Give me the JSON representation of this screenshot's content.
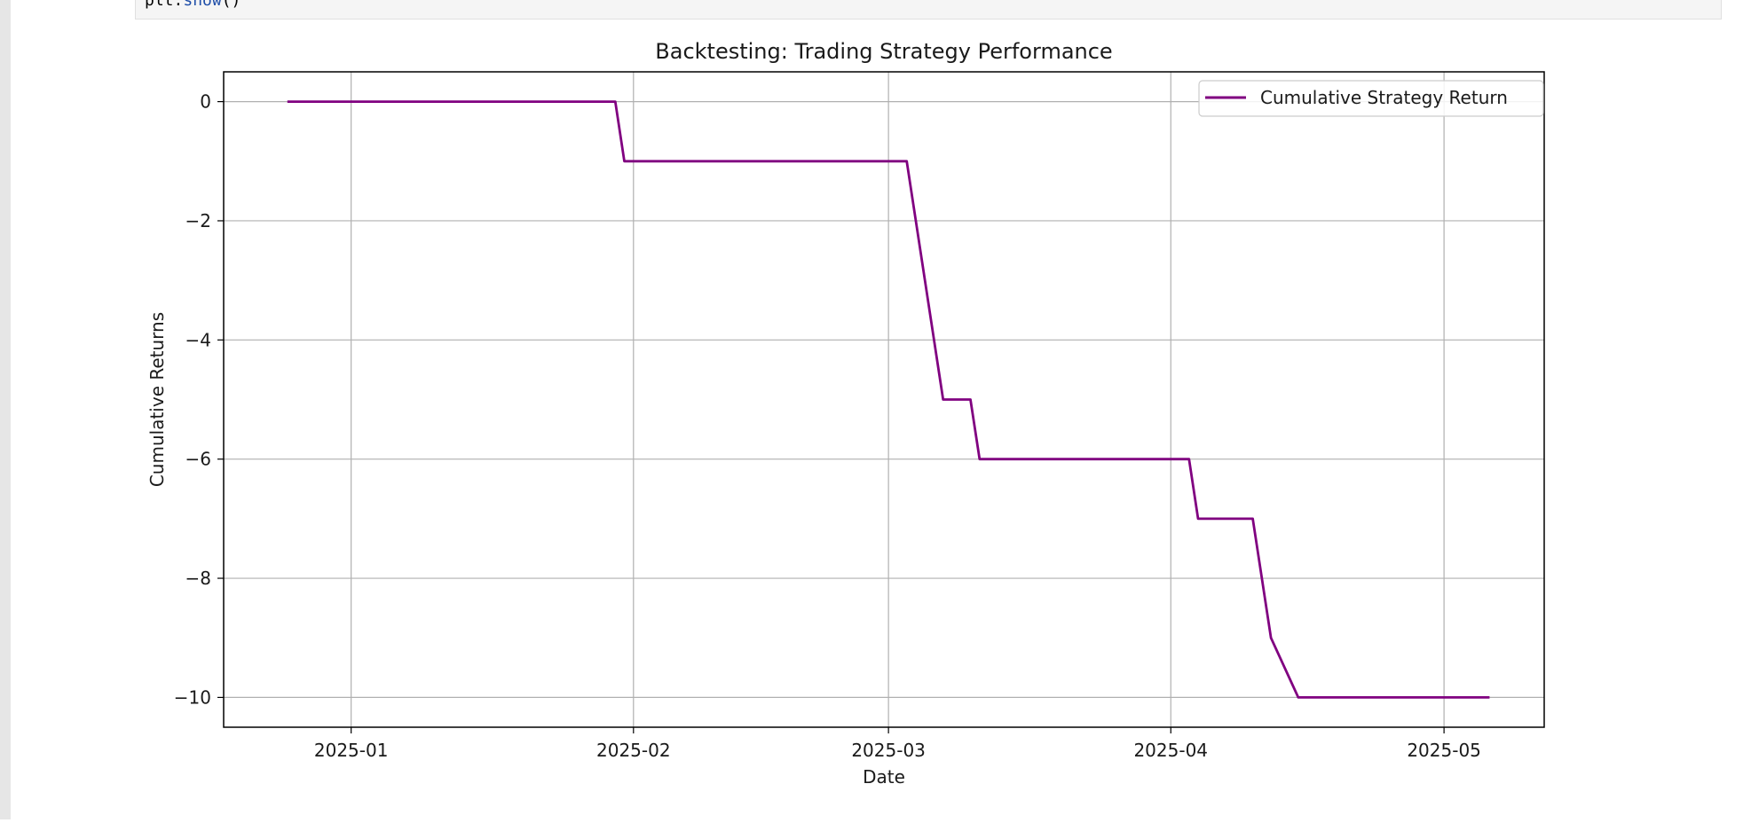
{
  "code": {
    "object": "plt",
    "dot": ".",
    "method": "show",
    "parens": "()"
  },
  "chart_data": {
    "type": "line",
    "title": "Backtesting: Trading Strategy Performance",
    "xlabel": "Date",
    "ylabel": "Cumulative Returns",
    "xlim": [
      "2024-12-18",
      "2025-05-12"
    ],
    "ylim": [
      -10.5,
      0.5
    ],
    "xticks": [
      {
        "date": "2025-01-01",
        "label": "2025-01"
      },
      {
        "date": "2025-02-01",
        "label": "2025-02"
      },
      {
        "date": "2025-03-01",
        "label": "2025-03"
      },
      {
        "date": "2025-04-01",
        "label": "2025-04"
      },
      {
        "date": "2025-05-01",
        "label": "2025-05"
      }
    ],
    "yticks": [
      {
        "value": 0,
        "label": "0"
      },
      {
        "value": -2,
        "label": "−2"
      },
      {
        "value": -4,
        "label": "−4"
      },
      {
        "value": -6,
        "label": "−6"
      },
      {
        "value": -8,
        "label": "−8"
      },
      {
        "value": -10,
        "label": "−10"
      }
    ],
    "grid": true,
    "legend_position": "top-right",
    "series": [
      {
        "name": "Cumulative Strategy Return",
        "color": "#800080",
        "points": [
          {
            "x": "2024-12-25",
            "y": 0
          },
          {
            "x": "2025-01-30",
            "y": 0
          },
          {
            "x": "2025-01-31",
            "y": -1
          },
          {
            "x": "2025-03-03",
            "y": -1
          },
          {
            "x": "2025-03-07",
            "y": -5
          },
          {
            "x": "2025-03-10",
            "y": -5
          },
          {
            "x": "2025-03-11",
            "y": -6
          },
          {
            "x": "2025-04-03",
            "y": -6
          },
          {
            "x": "2025-04-04",
            "y": -7
          },
          {
            "x": "2025-04-10",
            "y": -7
          },
          {
            "x": "2025-04-12",
            "y": -9
          },
          {
            "x": "2025-04-15",
            "y": -10
          },
          {
            "x": "2025-05-06",
            "y": -10
          }
        ]
      }
    ]
  }
}
